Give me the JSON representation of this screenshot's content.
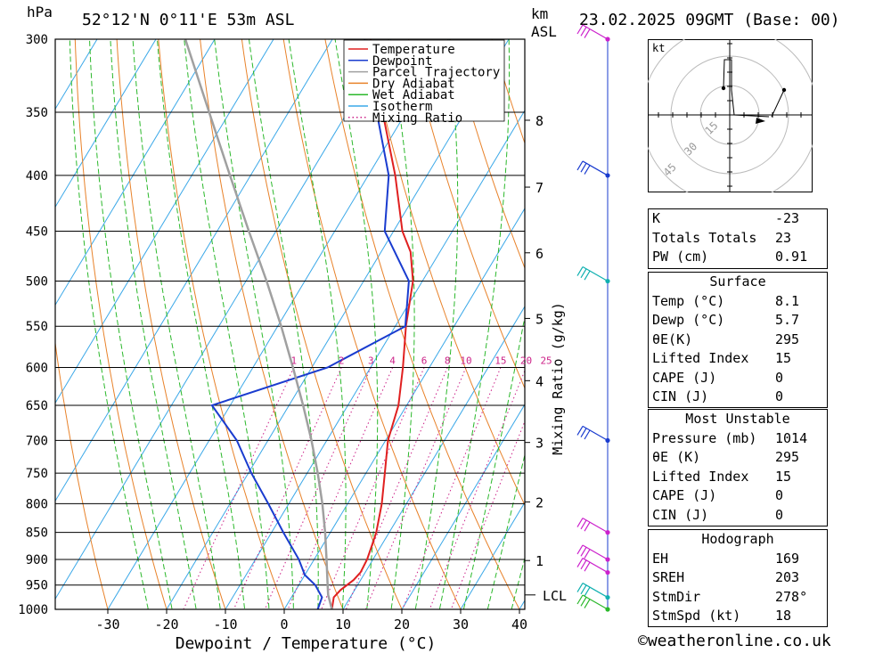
{
  "header": {
    "pressure_unit": "hPa",
    "location": "52°12'N  0°11'E  53m  ASL",
    "height_unit": "km",
    "height_unit_sub": "ASL",
    "datetime": "23.02.2025  09GMT  (Base: 00)"
  },
  "chart_data": {
    "type": "skew-t",
    "xlabel": "Dewpoint / Temperature (°C)",
    "x_ticks": [
      -30,
      -20,
      -10,
      0,
      10,
      20,
      30,
      40
    ],
    "x_range": [
      -40,
      40
    ],
    "pressure_levels": [
      300,
      350,
      400,
      450,
      500,
      550,
      600,
      650,
      700,
      750,
      800,
      850,
      900,
      950,
      1000
    ],
    "y_range": [
      1000,
      300
    ],
    "y_scale": "log",
    "km_ticks": [
      {
        "km": "1",
        "p": 902
      },
      {
        "km": "2",
        "p": 797
      },
      {
        "km": "3",
        "p": 703
      },
      {
        "km": "4",
        "p": 617
      },
      {
        "km": "5",
        "p": 541
      },
      {
        "km": "6",
        "p": 471
      },
      {
        "km": "7",
        "p": 410
      },
      {
        "km": "8",
        "p": 356
      }
    ],
    "lcl": {
      "label": "LCL",
      "p": 970
    },
    "mixing_ratio_axis_label": "Mixing Ratio (g/kg)",
    "mixing_ratio_labels": [
      "1",
      "2",
      "3",
      "4",
      "6",
      "8",
      "10",
      "15",
      "20",
      "25"
    ],
    "legend": [
      "Temperature",
      "Dewpoint",
      "Parcel Trajectory",
      "Dry Adiabat",
      "Wet Adiabat",
      "Isotherm",
      "Mixing Ratio"
    ],
    "legend_colors": [
      "#e02020",
      "#1a3ccf",
      "#a0a0a0",
      "#e8822a",
      "#2bb82b",
      "#3aa8e8",
      "#cc2288"
    ],
    "series": [
      {
        "name": "Temperature",
        "color": "#e02020",
        "points": [
          [
            1000,
            8.1
          ],
          [
            975,
            7.2
          ],
          [
            960,
            7.6
          ],
          [
            940,
            8.8
          ],
          [
            925,
            9.2
          ],
          [
            900,
            9.0
          ],
          [
            870,
            8.3
          ],
          [
            850,
            7.8
          ],
          [
            800,
            5.8
          ],
          [
            750,
            3.2
          ],
          [
            700,
            0.4
          ],
          [
            650,
            -1.4
          ],
          [
            600,
            -4.5
          ],
          [
            550,
            -8.2
          ],
          [
            500,
            -11.6
          ],
          [
            470,
            -15.0
          ],
          [
            450,
            -18.5
          ],
          [
            400,
            -25.4
          ],
          [
            350,
            -34.0
          ],
          [
            300,
            -43.5
          ]
        ]
      },
      {
        "name": "Dewpoint",
        "color": "#1a3ccf",
        "points": [
          [
            1000,
            5.7
          ],
          [
            975,
            5.2
          ],
          [
            950,
            2.8
          ],
          [
            930,
            0.0
          ],
          [
            900,
            -2.6
          ],
          [
            850,
            -8.0
          ],
          [
            800,
            -13.5
          ],
          [
            750,
            -19.5
          ],
          [
            700,
            -25.3
          ],
          [
            650,
            -33.1
          ],
          [
            600,
            -17.3
          ],
          [
            550,
            -8.3
          ],
          [
            500,
            -12.3
          ],
          [
            450,
            -21.5
          ],
          [
            400,
            -26.5
          ],
          [
            350,
            -35.0
          ],
          [
            300,
            -44.5
          ]
        ]
      },
      {
        "name": "Parcel Trajectory",
        "color": "#a0a0a0",
        "points": [
          [
            1000,
            8.1
          ],
          [
            970,
            6.0
          ],
          [
            950,
            4.9
          ],
          [
            900,
            2.1
          ],
          [
            850,
            -0.9
          ],
          [
            800,
            -4.3
          ],
          [
            750,
            -8.2
          ],
          [
            700,
            -12.6
          ],
          [
            650,
            -17.6
          ],
          [
            600,
            -23.2
          ],
          [
            550,
            -29.4
          ],
          [
            500,
            -36.5
          ],
          [
            450,
            -44.6
          ],
          [
            400,
            -53.5
          ],
          [
            350,
            -63.5
          ],
          [
            300,
            -75.0
          ]
        ]
      }
    ],
    "wind_profile": [
      {
        "p": 300,
        "color": "#cc22cc"
      },
      {
        "p": 400,
        "color": "#1a3ccf"
      },
      {
        "p": 500,
        "color": "#10b0b0"
      },
      {
        "p": 700,
        "color": "#1a3ccf"
      },
      {
        "p": 850,
        "color": "#cc22cc"
      },
      {
        "p": 900,
        "color": "#cc22cc"
      },
      {
        "p": 925,
        "color": "#cc22cc"
      },
      {
        "p": 975,
        "color": "#10b0b0"
      },
      {
        "p": 1000,
        "color": "#2bb82b"
      }
    ],
    "hodograph": {
      "unit": "kt",
      "ring_labels": [
        "15",
        "30",
        "45"
      ],
      "trace": [
        [
          61,
          -28
        ],
        [
          49,
          -37
        ],
        [
          61,
          -28
        ],
        [
          47,
          2
        ],
        [
          44,
          2
        ],
        [
          5,
          0
        ],
        [
          2,
          -28
        ],
        [
          2,
          -62
        ],
        [
          -6,
          -62
        ],
        [
          -7,
          -30
        ]
      ]
    }
  },
  "indices": {
    "rows1": [
      {
        "label": "K",
        "value": "-23"
      },
      {
        "label": "Totals Totals",
        "value": "23"
      },
      {
        "label": "PW (cm)",
        "value": "0.91"
      }
    ],
    "surface_title": "Surface",
    "surface": [
      {
        "label": "Temp (°C)",
        "value": "8.1"
      },
      {
        "label": "Dewp (°C)",
        "value": "5.7"
      },
      {
        "label": "θE(K)",
        "value": "295"
      },
      {
        "label": "Lifted Index",
        "value": "15"
      },
      {
        "label": "CAPE (J)",
        "value": "0"
      },
      {
        "label": "CIN (J)",
        "value": "0"
      }
    ],
    "mu_title": "Most Unstable",
    "mu": [
      {
        "label": "Pressure (mb)",
        "value": "1014"
      },
      {
        "label": "θE (K)",
        "value": "295"
      },
      {
        "label": "Lifted Index",
        "value": "15"
      },
      {
        "label": "CAPE (J)",
        "value": "0"
      },
      {
        "label": "CIN (J)",
        "value": "0"
      }
    ],
    "hodo_title": "Hodograph",
    "hodo": [
      {
        "label": "EH",
        "value": "169"
      },
      {
        "label": "SREH",
        "value": "203"
      },
      {
        "label": "StmDir",
        "value": "278°"
      },
      {
        "label": "StmSpd (kt)",
        "value": "18"
      }
    ]
  },
  "footer": {
    "copyright_symbol": "©",
    "site": "weatheronline.co.uk"
  }
}
